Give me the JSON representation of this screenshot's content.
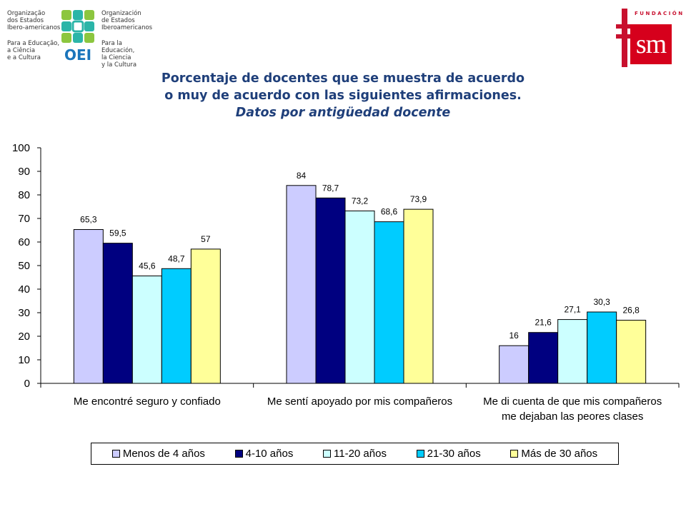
{
  "logos": {
    "oei": {
      "left_lines": [
        "Organização",
        "dos Estados",
        "Ibero-americanos"
      ],
      "left_tagline": [
        "Para a Educação,",
        "a Ciência",
        "e a Cultura"
      ],
      "right_lines": [
        "Organización",
        "de Estados",
        "Iberoamericanos"
      ],
      "right_tagline": [
        "Para la Educación,",
        "la Ciencia",
        "y la Cultura"
      ],
      "wordmark": "OEI"
    },
    "fsm": {
      "foundation": "FUNDACIÓN",
      "wordmark": "sm"
    }
  },
  "title": {
    "line1": "Porcentaje de docentes que se muestra de acuerdo",
    "line2": "o muy de acuerdo con las siguientes afirmaciones.",
    "line3": "Datos por antigüedad docente"
  },
  "chart_data": {
    "type": "bar",
    "title": "Porcentaje de docentes que se muestra de acuerdo o muy de acuerdo con las siguientes afirmaciones. Datos por antigüedad docente",
    "categories": [
      [
        "Me encontré seguro y confiado"
      ],
      [
        "Me sentí apoyado por mis compañeros"
      ],
      [
        "Me di cuenta de que mis compañeros",
        "me dejaban las peores clases"
      ]
    ],
    "series": [
      {
        "name": "Menos de 4 años",
        "color": "#ccccff",
        "values": [
          65.3,
          84,
          16
        ],
        "labels": [
          "65,3",
          "84",
          "16"
        ]
      },
      {
        "name": "4-10 años",
        "color": "#000080",
        "values": [
          59.5,
          78.7,
          21.6
        ],
        "labels": [
          "59,5",
          "78,7",
          "21,6"
        ]
      },
      {
        "name": "11-20 años",
        "color": "#ccffff",
        "values": [
          45.6,
          73.2,
          27.1
        ],
        "labels": [
          "45,6",
          "73,2",
          "27,1"
        ]
      },
      {
        "name": "21-30 años",
        "color": "#00ccff",
        "values": [
          48.7,
          68.6,
          30.3
        ],
        "labels": [
          "48,7",
          "68,6",
          "30,3"
        ]
      },
      {
        "name": "Más de 30 años",
        "color": "#ffff99",
        "values": [
          57,
          73.9,
          26.8
        ],
        "labels": [
          "57",
          "73,9",
          "26,8"
        ]
      }
    ],
    "ylim": [
      0,
      100
    ],
    "yticks": [
      0,
      10,
      20,
      30,
      40,
      50,
      60,
      70,
      80,
      90,
      100
    ],
    "xlabel": "",
    "ylabel": "",
    "grid": false,
    "legend": "bottom"
  }
}
